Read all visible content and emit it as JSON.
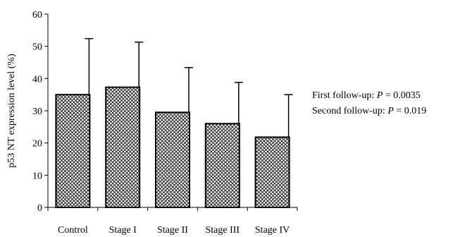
{
  "chart_data": {
    "type": "bar",
    "title": "",
    "xlabel": "",
    "ylabel": "p53 NT expression level (%)",
    "ylim": [
      0,
      60
    ],
    "yticks": [
      "0",
      "10",
      "20",
      "30",
      "40",
      "50",
      "60"
    ],
    "categories": [
      "Control",
      "Stage I",
      "Stage II",
      "Stage III",
      "Stage IV"
    ],
    "values": [
      35,
      37.3,
      29.5,
      26,
      21.8
    ],
    "error_upper": [
      52.4,
      51.3,
      43.4,
      38.8,
      35.0
    ],
    "bar_fill": "crosshatch",
    "grid": false,
    "legend": "none",
    "annotations": [
      {
        "prefix": "First follow-up: ",
        "p_symbol": "P",
        "suffix": " = 0.0035"
      },
      {
        "prefix": "Second follow-up: ",
        "p_symbol": "P",
        "suffix": " = 0.019"
      }
    ]
  }
}
